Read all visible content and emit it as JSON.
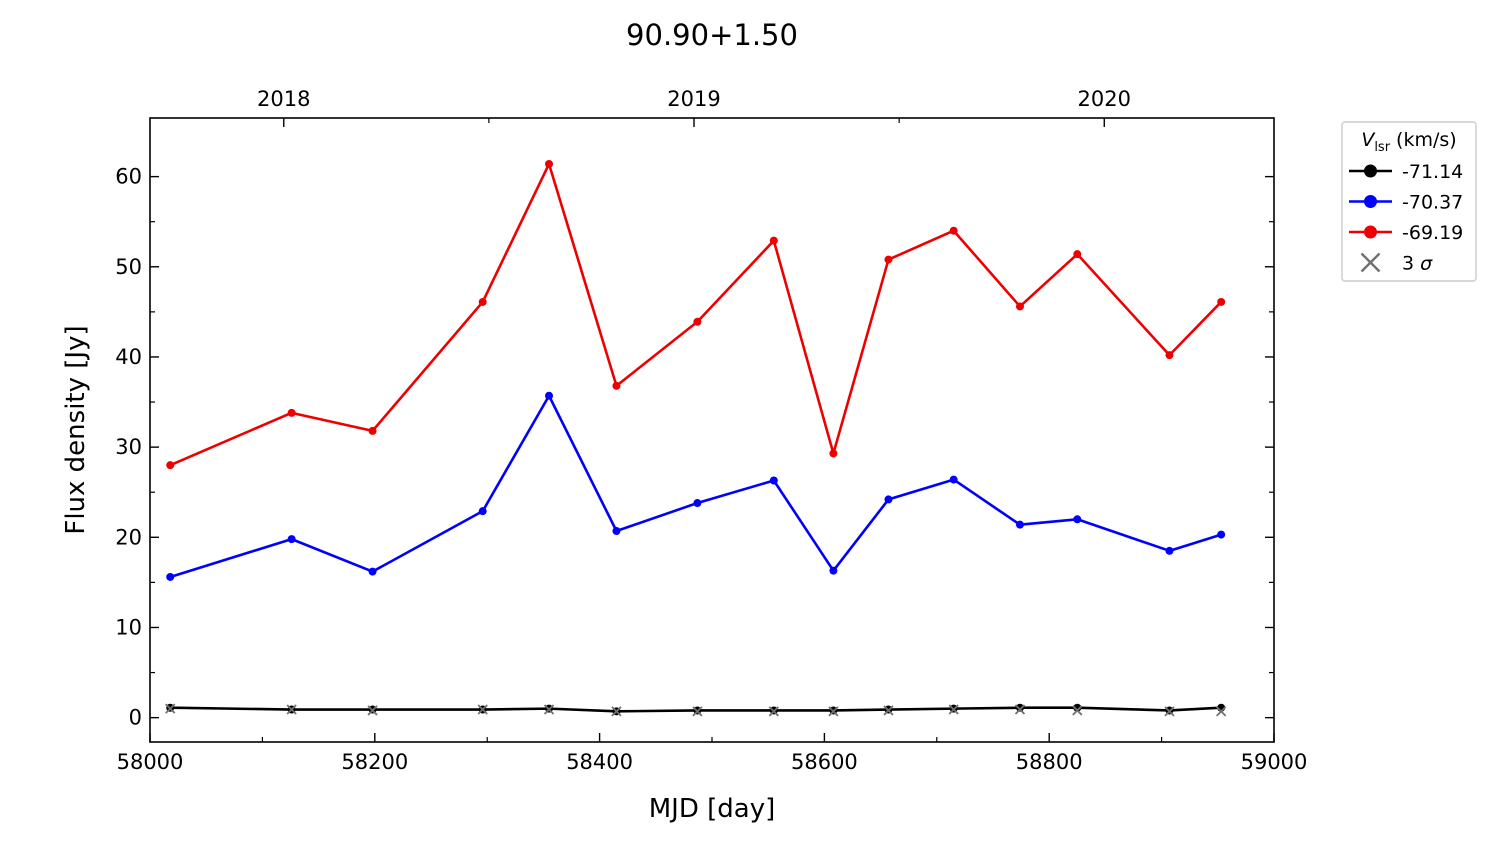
{
  "chart_data": {
    "type": "line",
    "title": "90.90+1.50",
    "xlabel": "MJD [day]",
    "ylabel": "Flux density [Jy]",
    "xlim": [
      58000,
      59000
    ],
    "ylim": [
      -2.7,
      66.5
    ],
    "grid": false,
    "x_ticks": [
      58000,
      58200,
      58400,
      58600,
      58800,
      59000
    ],
    "x_tick_labels": [
      "58000",
      "58200",
      "58400",
      "58600",
      "58800",
      "59000"
    ],
    "y_ticks": [
      0,
      10,
      20,
      30,
      40,
      50,
      60
    ],
    "y_tick_labels": [
      "0",
      "10",
      "20",
      "30",
      "40",
      "50",
      "60"
    ],
    "top_axis": {
      "ticks": [
        58119,
        58484,
        58849
      ],
      "labels": [
        "2018",
        "2019",
        "2020"
      ],
      "minor_ticks": [
        58301.5,
        58666.5
      ]
    },
    "x": [
      58018,
      58126,
      58198,
      58296,
      58355,
      58415,
      58487,
      58555,
      58608,
      58657,
      58715,
      58774,
      58825,
      58907,
      58953
    ],
    "series": [
      {
        "name": "-71.14",
        "color": "#000000",
        "values": [
          1.1,
          0.9,
          0.9,
          0.9,
          1.0,
          0.7,
          0.8,
          0.8,
          0.8,
          0.9,
          1.0,
          1.1,
          1.1,
          0.8,
          1.1
        ]
      },
      {
        "name": "-70.37",
        "color": "#0000ff",
        "values": [
          15.6,
          19.8,
          16.2,
          22.9,
          35.7,
          20.7,
          23.8,
          26.3,
          16.3,
          24.2,
          26.4,
          21.4,
          22.0,
          18.5,
          20.3
        ]
      },
      {
        "name": "-69.19",
        "color": "#ee0000",
        "values": [
          28.0,
          33.8,
          31.8,
          46.1,
          61.4,
          36.8,
          43.9,
          52.9,
          29.3,
          50.8,
          54.0,
          45.6,
          51.4,
          40.2,
          46.1
        ]
      }
    ],
    "sigma3": {
      "name": "3 σ",
      "color": "#707070",
      "values": [
        1.0,
        0.9,
        0.8,
        0.9,
        0.9,
        0.7,
        0.7,
        0.7,
        0.7,
        0.8,
        0.9,
        0.9,
        0.8,
        0.7,
        0.7
      ]
    },
    "legend": {
      "title_symbol": "V",
      "title_subscript": "lsr",
      "title_unit": "(km/s)",
      "placement": "outside-right-top"
    }
  }
}
